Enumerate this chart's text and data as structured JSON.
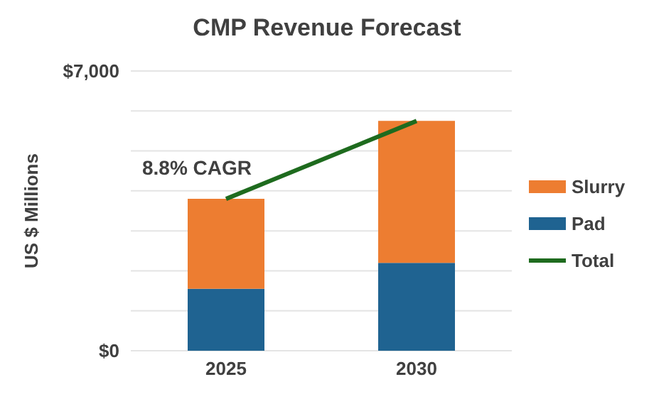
{
  "chart_data": {
    "type": "bar",
    "title": "CMP Revenue Forecast",
    "ylabel": "US $ Millions",
    "categories": [
      "2025",
      "2030"
    ],
    "stacked": true,
    "series": [
      {
        "name": "Pad",
        "color": "#1f6391",
        "values": [
          1550,
          2200
        ]
      },
      {
        "name": "Slurry",
        "color": "#ed7d31",
        "values": [
          2250,
          3550
        ]
      },
      {
        "name": "Total",
        "type": "line",
        "color": "#1e6b1e",
        "values": [
          3800,
          5750
        ]
      }
    ],
    "ylim": [
      0,
      7000
    ],
    "yticks": [
      {
        "value": 0,
        "label": "$0"
      },
      {
        "value": 1000,
        "label": null
      },
      {
        "value": 2000,
        "label": null
      },
      {
        "value": 3000,
        "label": null
      },
      {
        "value": 4000,
        "label": null
      },
      {
        "value": 5000,
        "label": null
      },
      {
        "value": 6000,
        "label": null
      },
      {
        "value": 7000,
        "label": "$7,000"
      }
    ],
    "grid": "y",
    "legend": "right",
    "marker": "none",
    "annotations": [
      "8.8% CAGR"
    ]
  }
}
